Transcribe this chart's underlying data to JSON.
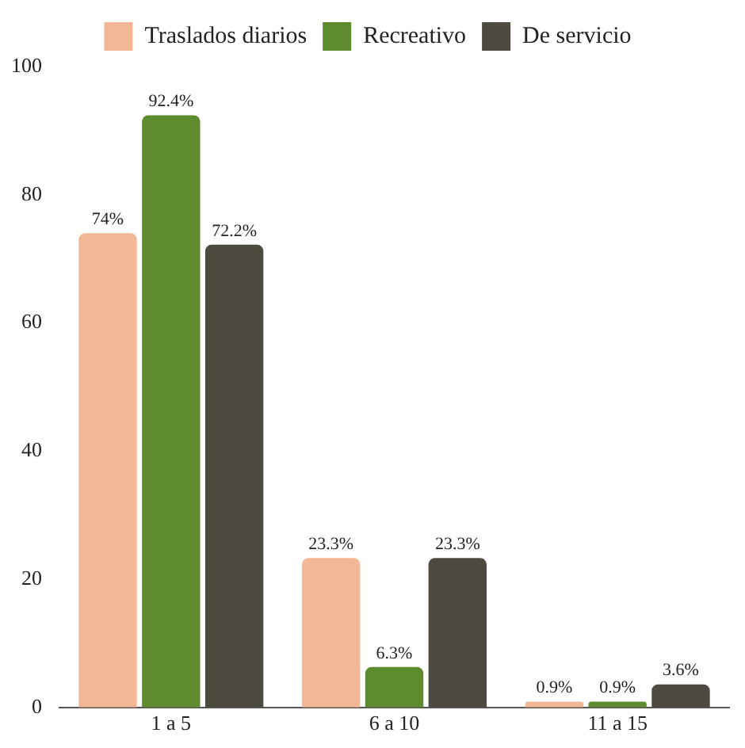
{
  "chart_data": {
    "type": "bar",
    "categories": [
      "1 a 5",
      "6 a 10",
      "11 a 15"
    ],
    "series": [
      {
        "name": "Traslados diarios",
        "color": "#f2b896",
        "values": [
          74,
          23.3,
          0.9
        ],
        "value_labels": [
          "74%",
          "23.3%",
          "0.9%"
        ]
      },
      {
        "name": "Recreativo",
        "color": "#5f8b2f",
        "values": [
          92.4,
          6.3,
          0.9
        ],
        "value_labels": [
          "92.4%",
          "6.3%",
          "0.9%"
        ]
      },
      {
        "name": "De servicio",
        "color": "#4e4a40",
        "values": [
          72.2,
          23.3,
          3.6
        ],
        "value_labels": [
          "72.2%",
          "23.3%",
          "3.6%"
        ]
      }
    ],
    "ylim": [
      0,
      100
    ],
    "yticks": [
      0,
      20,
      40,
      60,
      80,
      100
    ],
    "grid": false,
    "legend": "top"
  }
}
